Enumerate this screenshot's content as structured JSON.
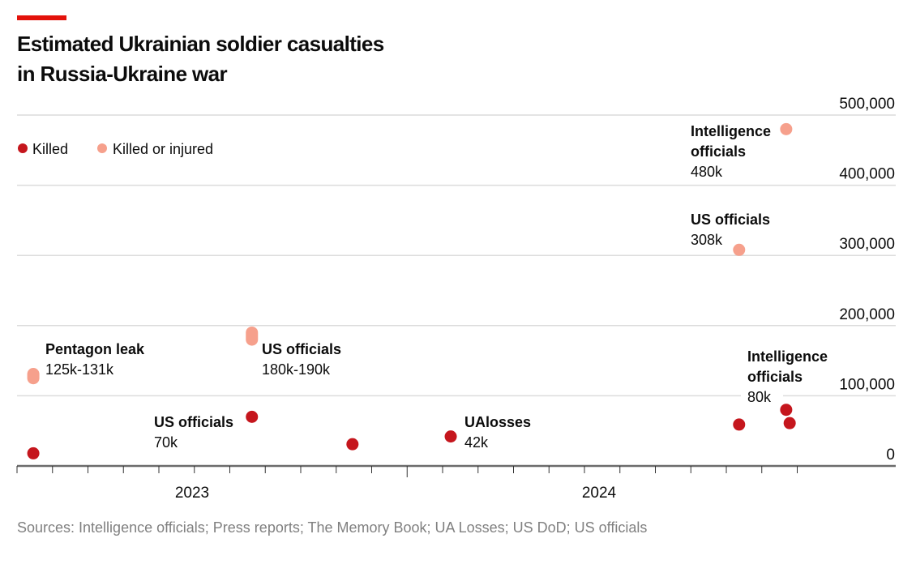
{
  "chart_data": {
    "type": "scatter",
    "title": "Estimated Ukrainian soldier casualties in Russia-Ukraine war",
    "title_lines": [
      "Estimated Ukrainian soldier casualties",
      "in Russia-Ukraine war"
    ],
    "source": "Sources: Intelligence officials; Press reports; The Memory Book; UA Losses; US DoD; US officials",
    "legend": {
      "position": "top-left",
      "items": [
        {
          "label": "Killed",
          "color": "#c5161d"
        },
        {
          "label": "Killed or injured",
          "color": "#f6a08c"
        }
      ]
    },
    "xlabel": "",
    "ylabel": "",
    "x_range": [
      "2023-02-01",
      "2025-02-25"
    ],
    "x_ticks": [
      "2023",
      "2024"
    ],
    "ylim": [
      0,
      500000
    ],
    "y_ticks": [
      "0",
      "100,000",
      "200,000",
      "300,000",
      "400,000",
      "500,000"
    ],
    "y_tick_values": [
      0,
      100000,
      200000,
      300000,
      400000,
      500000
    ],
    "grid": true,
    "series": [
      {
        "name": "Killed",
        "color": "#c5161d",
        "points": [
          {
            "x": "2023-02-15",
            "y": 18000
          },
          {
            "x": "2023-08-20",
            "y": 70000,
            "label": "US officials",
            "value_label": "70k"
          },
          {
            "x": "2023-11-15",
            "y": 31000
          },
          {
            "x": "2024-02-08",
            "y": 42000,
            "label": "UAlosses",
            "value_label": "42k"
          },
          {
            "x": "2024-10-12",
            "y": 59000
          },
          {
            "x": "2024-11-22",
            "y": 80000,
            "label": "Intelligence officials",
            "label_lines": [
              "Intelligence",
              "officials"
            ],
            "value_label": "80k"
          },
          {
            "x": "2024-11-25",
            "y": 61000
          }
        ]
      },
      {
        "name": "Killed or injured",
        "color": "#f6a08c",
        "points": [
          {
            "x": "2023-02-15",
            "y_low": 125000,
            "y_high": 131000,
            "label": "Pentagon leak",
            "value_label": "125k-131k"
          },
          {
            "x": "2023-08-20",
            "y_low": 180000,
            "y_high": 190000,
            "label": "US officials",
            "value_label": "180k-190k"
          },
          {
            "x": "2024-10-12",
            "y": 308000,
            "label": "US officials",
            "value_label": "308k"
          },
          {
            "x": "2024-11-22",
            "y": 480000,
            "label": "Intelligence officials",
            "label_lines": [
              "Intelligence",
              "officials"
            ],
            "value_label": "480k"
          }
        ]
      }
    ]
  }
}
